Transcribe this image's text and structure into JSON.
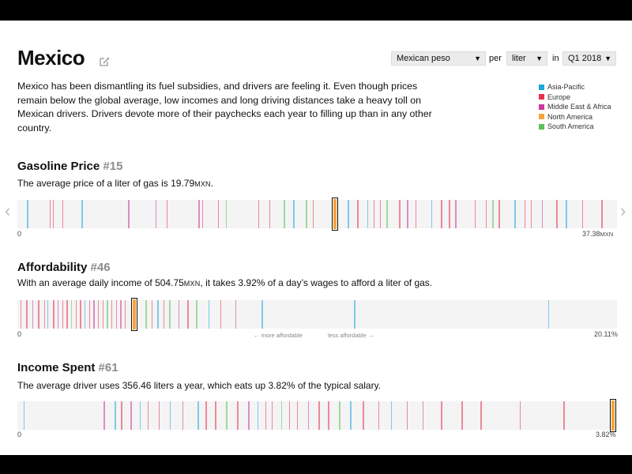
{
  "header": {
    "title": "Mexico",
    "intro": "Mexico has been dismantling its fuel subsidies, and drivers are feeling it. Even though prices remain below the global average, low incomes and long driving distances take a heavy toll on Mexican drivers. Drivers devote more of their paychecks each year to filling up than in any other country."
  },
  "controls": {
    "currency": "Mexican peso",
    "per_word": "per",
    "unit": "liter",
    "in_word": "in",
    "period": "Q1 2018",
    "caret": "▼"
  },
  "legend": [
    {
      "label": "Asia-Pacific",
      "color": "#1ea8df"
    },
    {
      "label": "Europe",
      "color": "#e8304f"
    },
    {
      "label": "Middle East & Africa",
      "color": "#c8399b"
    },
    {
      "label": "North America",
      "color": "#f7a33a"
    },
    {
      "label": "South America",
      "color": "#5dc05a"
    }
  ],
  "nav": {
    "prev": "‹",
    "next": "›"
  },
  "sections": {
    "gasoline": {
      "title": "Gasoline Price",
      "rank": "#15",
      "desc_prefix": "The average price of a liter of gas is 19.79",
      "desc_unit": "MXN",
      "desc_suffix": ".",
      "axis_min": "0",
      "axis_max_value": "37.38",
      "axis_max_unit": "MXN",
      "scale_max": 37.38,
      "marker_value": 19.79
    },
    "affordability": {
      "title": "Affordability",
      "rank": "#46",
      "desc_prefix": "With an average daily income of 504.75",
      "desc_unit": "MXN",
      "desc_suffix": ", it takes 3.92% of a day’s wages to afford a liter of gas.",
      "axis_min": "0",
      "axis_max": "20.11%",
      "hint_left": "← more affordable",
      "hint_right": "less affordable →",
      "scale_max": 20.11,
      "marker_value": 3.92
    },
    "income": {
      "title": "Income Spent",
      "rank": "#61",
      "desc": "The average driver uses 356.46 liters a year, which eats up 3.82% of the typical salary.",
      "axis_min": "0",
      "axis_max": "3.82%",
      "scale_max": 3.82,
      "marker_value": 3.82
    }
  },
  "strips": {
    "gasoline": [
      [
        0.6,
        "#1ea8df"
      ],
      [
        2.0,
        "#e8304f"
      ],
      [
        2.2,
        "#e8304f"
      ],
      [
        2.8,
        "#e8304f"
      ],
      [
        4.0,
        "#1ea8df"
      ],
      [
        6.9,
        "#c8399b"
      ],
      [
        8.6,
        "#c8399b"
      ],
      [
        9.3,
        "#e8304f"
      ],
      [
        11.3,
        "#c8399b"
      ],
      [
        11.5,
        "#e8304f"
      ],
      [
        12.5,
        "#e8304f"
      ],
      [
        13.0,
        "#5dc05a"
      ],
      [
        15.0,
        "#e8304f"
      ],
      [
        15.7,
        "#e8304f"
      ],
      [
        16.6,
        "#5dc05a"
      ],
      [
        17.2,
        "#1ea8df"
      ],
      [
        18.0,
        "#5dc05a"
      ],
      [
        18.4,
        "#e8304f"
      ],
      [
        20.6,
        "#1ea8df"
      ],
      [
        21.2,
        "#e8304f"
      ],
      [
        21.8,
        "#1ea8df"
      ],
      [
        22.2,
        "#e8304f"
      ],
      [
        22.6,
        "#e8304f"
      ],
      [
        23.0,
        "#5dc05a"
      ],
      [
        23.8,
        "#e8304f"
      ],
      [
        24.3,
        "#c8399b"
      ],
      [
        24.8,
        "#e8304f"
      ],
      [
        25.8,
        "#1ea8df"
      ],
      [
        26.4,
        "#e8304f"
      ],
      [
        26.9,
        "#e8304f"
      ],
      [
        27.3,
        "#c8399b"
      ],
      [
        28.5,
        "#e8304f"
      ],
      [
        29.2,
        "#e8304f"
      ],
      [
        29.6,
        "#5dc05a"
      ],
      [
        30.0,
        "#e8304f"
      ],
      [
        31.0,
        "#1ea8df"
      ],
      [
        31.6,
        "#e8304f"
      ],
      [
        32.0,
        "#e8304f"
      ],
      [
        32.7,
        "#c8399b"
      ],
      [
        33.6,
        "#e8304f"
      ],
      [
        34.2,
        "#1ea8df"
      ],
      [
        35.2,
        "#e8304f"
      ],
      [
        36.4,
        "#e8304f"
      ]
    ],
    "affordability": [
      [
        0.1,
        "#e8304f"
      ],
      [
        0.3,
        "#e8304f"
      ],
      [
        0.5,
        "#c8399b"
      ],
      [
        0.7,
        "#e8304f"
      ],
      [
        0.9,
        "#e8304f"
      ],
      [
        1.0,
        "#1ea8df"
      ],
      [
        1.2,
        "#e8304f"
      ],
      [
        1.35,
        "#c8399b"
      ],
      [
        1.5,
        "#e8304f"
      ],
      [
        1.65,
        "#e8304f"
      ],
      [
        1.8,
        "#5dc05a"
      ],
      [
        1.95,
        "#e8304f"
      ],
      [
        2.1,
        "#e8304f"
      ],
      [
        2.25,
        "#1ea8df"
      ],
      [
        2.4,
        "#e8304f"
      ],
      [
        2.55,
        "#c8399b"
      ],
      [
        2.7,
        "#e8304f"
      ],
      [
        2.85,
        "#e8304f"
      ],
      [
        3.0,
        "#5dc05a"
      ],
      [
        3.15,
        "#e8304f"
      ],
      [
        3.3,
        "#e8304f"
      ],
      [
        3.45,
        "#c8399b"
      ],
      [
        3.6,
        "#e8304f"
      ],
      [
        4.3,
        "#5dc05a"
      ],
      [
        4.5,
        "#e8304f"
      ],
      [
        4.7,
        "#1ea8df"
      ],
      [
        4.9,
        "#e8304f"
      ],
      [
        5.1,
        "#5dc05a"
      ],
      [
        5.4,
        "#c8399b"
      ],
      [
        5.7,
        "#e8304f"
      ],
      [
        6.0,
        "#5dc05a"
      ],
      [
        6.4,
        "#1ea8df"
      ],
      [
        6.8,
        "#e8304f"
      ],
      [
        7.3,
        "#c8399b"
      ],
      [
        8.2,
        "#1ea8df"
      ],
      [
        11.3,
        "#1ea8df"
      ],
      [
        17.8,
        "#1ea8df"
      ]
    ],
    "income": [
      [
        0.04,
        "#1ea8df"
      ],
      [
        0.55,
        "#c8399b"
      ],
      [
        0.62,
        "#1ea8df"
      ],
      [
        0.66,
        "#e8304f"
      ],
      [
        0.72,
        "#c8399b"
      ],
      [
        0.78,
        "#1ea8df"
      ],
      [
        0.83,
        "#e8304f"
      ],
      [
        0.9,
        "#e8304f"
      ],
      [
        0.97,
        "#1ea8df"
      ],
      [
        1.05,
        "#c8399b"
      ],
      [
        1.15,
        "#1ea8df"
      ],
      [
        1.2,
        "#e8304f"
      ],
      [
        1.26,
        "#e8304f"
      ],
      [
        1.33,
        "#5dc05a"
      ],
      [
        1.4,
        "#e8304f"
      ],
      [
        1.47,
        "#c8399b"
      ],
      [
        1.53,
        "#1ea8df"
      ],
      [
        1.58,
        "#e8304f"
      ],
      [
        1.62,
        "#e8304f"
      ],
      [
        1.68,
        "#5dc05a"
      ],
      [
        1.73,
        "#e8304f"
      ],
      [
        1.78,
        "#e8304f"
      ],
      [
        1.85,
        "#c8399b"
      ],
      [
        1.92,
        "#e8304f"
      ],
      [
        1.98,
        "#e8304f"
      ],
      [
        2.05,
        "#5dc05a"
      ],
      [
        2.12,
        "#1ea8df"
      ],
      [
        2.2,
        "#e8304f"
      ],
      [
        2.3,
        "#e8304f"
      ],
      [
        2.38,
        "#1ea8df"
      ],
      [
        2.48,
        "#e8304f"
      ],
      [
        2.58,
        "#c8399b"
      ],
      [
        2.7,
        "#e8304f"
      ],
      [
        2.83,
        "#e8304f"
      ],
      [
        2.95,
        "#e8304f"
      ],
      [
        3.2,
        "#e8304f"
      ],
      [
        3.48,
        "#e8304f"
      ]
    ]
  }
}
